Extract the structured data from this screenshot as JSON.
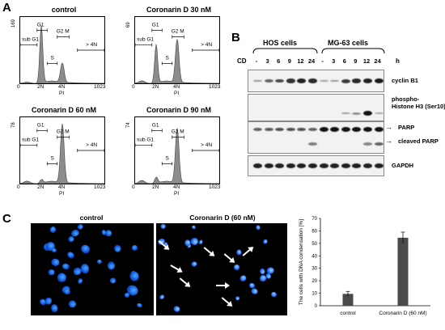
{
  "panels": {
    "a": "A",
    "b": "B",
    "c": "C"
  },
  "histograms": [
    {
      "title": "control",
      "ymax": "169",
      "xmin": "0",
      "xmax": "1023",
      "xaxis": "PI",
      "peak_g1": 0.92,
      "peak_g2m": 0.32,
      "subg1": 0.02
    },
    {
      "title": "Coronarin D 30 nM",
      "ymax": "69",
      "xmin": "0",
      "xmax": "1023",
      "xaxis": "PI",
      "peak_g1": 0.62,
      "peak_g2m": 0.7,
      "subg1": 0.04
    },
    {
      "title": "Coronarin D 60 nM",
      "ymax": "78",
      "xmin": "0",
      "xmax": "1023",
      "xaxis": "PI",
      "peak_g1": 0.06,
      "peak_g2m": 0.95,
      "subg1": 0.04
    },
    {
      "title": "Coronarin D 90 nM",
      "ymax": "74",
      "xmin": "0",
      "xmax": "1023",
      "xaxis": "PI",
      "peak_g1": 0.1,
      "peak_g2m": 0.88,
      "subg1": 0.05
    }
  ],
  "gate_labels": {
    "subg1": "sub G1",
    "g1": "G1",
    "s": "S",
    "g2m": "G2 M",
    "gt4n": "> 4N",
    "tick2n": "2N",
    "tick4n": "4N"
  },
  "blot": {
    "cell_lines": [
      "HOS cells",
      "MG-63 cells"
    ],
    "cd_label": "CD",
    "h_label": "h",
    "lanes": [
      "-",
      "3",
      "6",
      "9",
      "12",
      "24",
      "-",
      "3",
      "6",
      "9",
      "12",
      "24"
    ],
    "proteins": [
      {
        "label": "cyclin B1",
        "intensity": [
          0.2,
          0.5,
          0.65,
          0.8,
          0.9,
          0.85,
          0.15,
          0.2,
          0.75,
          0.85,
          0.9,
          0.95
        ]
      },
      {
        "label": "phospho-\nHistone H3 (Ser10)",
        "intensity": [
          0,
          0,
          0,
          0,
          0,
          0,
          0,
          0,
          0.15,
          0.25,
          1,
          0.1
        ]
      },
      {
        "label": "PARP",
        "intensity": [
          0.5,
          0.55,
          0.6,
          0.6,
          0.6,
          0.5,
          1,
          1,
          1,
          1,
          1,
          1
        ]
      },
      {
        "label": "cleaved PARP",
        "intensity": [
          0,
          0,
          0,
          0,
          0,
          0.35,
          0,
          0,
          0,
          0,
          0.3,
          0.5
        ]
      },
      {
        "label": "GAPDH",
        "intensity": [
          0.9,
          0.9,
          0.9,
          0.9,
          0.9,
          0.9,
          0.9,
          0.9,
          0.9,
          0.9,
          0.9,
          0.9
        ]
      }
    ]
  },
  "micrographs": {
    "left_title": "control",
    "right_title": "Coronarin D (60 nM)"
  },
  "chart_data": {
    "type": "bar",
    "categories": [
      "control",
      "Coronarin D (60 nM)"
    ],
    "values": [
      9.5,
      54.5
    ],
    "errors": [
      2,
      4.5
    ],
    "ylabel": "The cells with DNA condensation [%]",
    "ylim": [
      0,
      70
    ],
    "yticks": [
      "0",
      "10",
      "20",
      "30",
      "40",
      "50",
      "60",
      "70"
    ]
  }
}
